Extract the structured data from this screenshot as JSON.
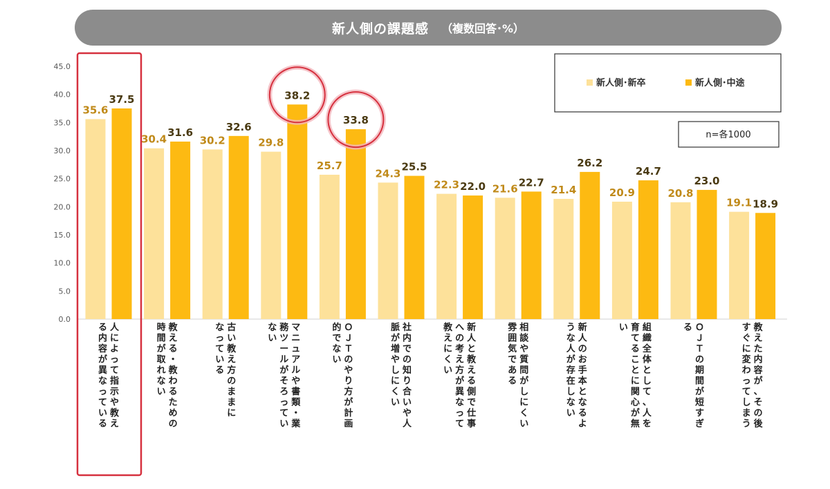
{
  "chart_data": {
    "type": "bar",
    "title": "新人側の課題感",
    "subtitle": "（複数回答･%）",
    "note": "n=各1000",
    "ylim": [
      0,
      45
    ],
    "yticks": [
      "0.0",
      "5.0",
      "10.0",
      "15.0",
      "20.0",
      "25.0",
      "30.0",
      "35.0",
      "40.0",
      "45.0"
    ],
    "legend_position": "top-right",
    "categories": [
      [
        "人によって指示や教え",
        "る内容が異なっている"
      ],
      [
        "教える・教わるための",
        "時間が取れない"
      ],
      [
        "古い教え方のままに",
        "なっている"
      ],
      [
        "マニュアルや書類・業",
        "務ツールがそろってい",
        "ない"
      ],
      [
        "ＯＪＴのやり方が計画",
        "的でない"
      ],
      [
        "社内での知り合いや人",
        "脈が増やしにくい"
      ],
      [
        "新人と教える側で仕事",
        "への考え方が異なって",
        "教えにくい"
      ],
      [
        "相談や質問がしにくい",
        "雰囲気である"
      ],
      [
        "新人のお手本となるよ",
        "うな人が存在しない"
      ],
      [
        "組織全体として、人を",
        "育てることに関心が無",
        "い"
      ],
      [
        "ＯＪＴの期間が短すぎ",
        "る"
      ],
      [
        "教えた内容が、その後",
        "すぐに変わってしまう"
      ]
    ],
    "series": [
      {
        "name": "新人側･新卒",
        "color": "#FDE19A",
        "label_color": "#C08A1A",
        "values": [
          35.6,
          30.4,
          30.2,
          29.8,
          25.7,
          24.3,
          22.3,
          21.6,
          21.4,
          20.9,
          20.8,
          19.1
        ],
        "labels": [
          "35.6",
          "30.4",
          "30.2",
          "29.8",
          "25.7",
          "24.3",
          "22.3",
          "21.6",
          "21.4",
          "20.9",
          "20.8",
          "19.1"
        ]
      },
      {
        "name": "新人側･中途",
        "color": "#FDBA12",
        "label_color": "#4A3A12",
        "values": [
          37.5,
          31.6,
          32.6,
          38.2,
          33.8,
          25.5,
          22.0,
          22.7,
          26.2,
          24.7,
          23.0,
          18.9
        ],
        "labels": [
          "37.5",
          "31.6",
          "32.6",
          "38.2",
          "33.8",
          "25.5",
          "22.0",
          "22.7",
          "26.2",
          "24.7",
          "23.0",
          "18.9"
        ]
      }
    ],
    "highlight_box_category": 0,
    "highlight_circles": [
      {
        "series": 1,
        "category": 3
      },
      {
        "series": 1,
        "category": 4
      }
    ],
    "highlight_color": "#D6303E"
  }
}
